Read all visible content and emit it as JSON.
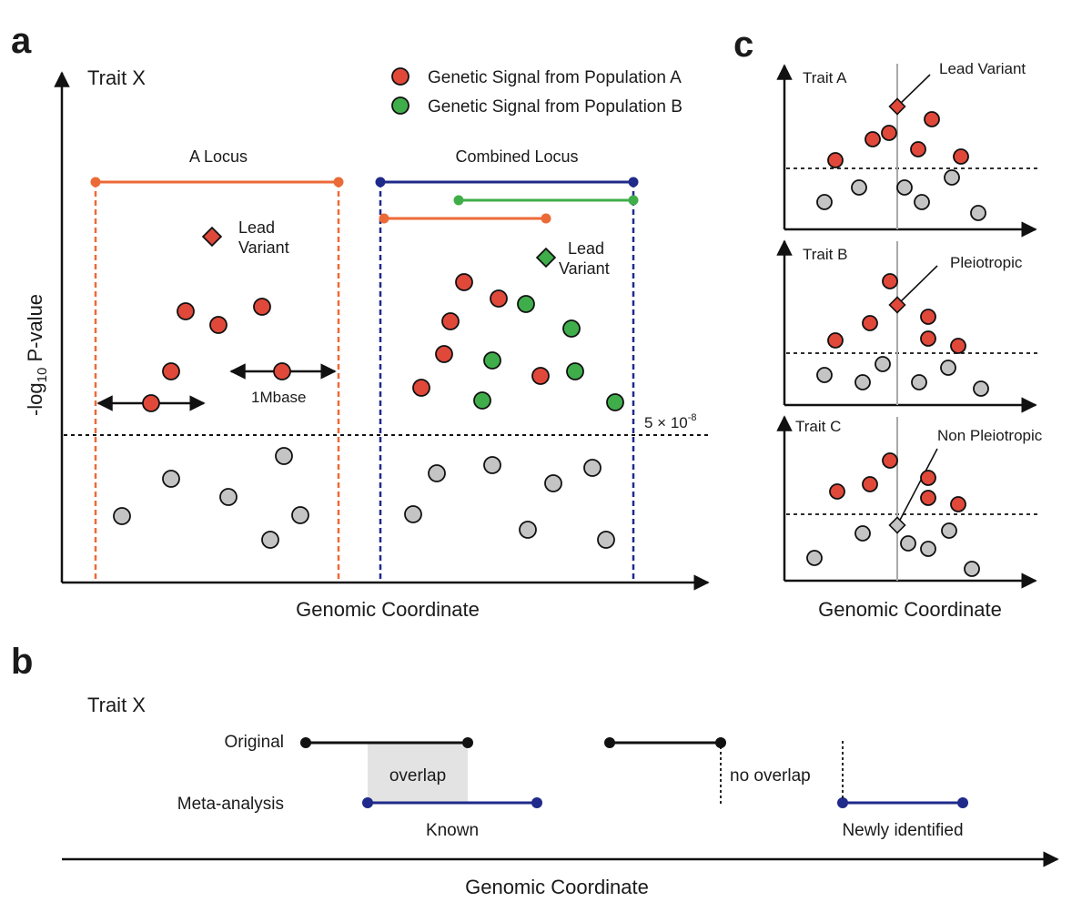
{
  "colors": {
    "pop_a": "#e0483a",
    "pop_b": "#3fae4a",
    "null": "#c4c4c4",
    "locus_a": "#ec6a37",
    "combined": "#1f2a8a",
    "meta": "#1f2a8a",
    "known_line": "#111111",
    "overlap_fill": "#e3e3e3",
    "pleio_line": "#a9a9a9"
  },
  "panel_a": {
    "letter": "a",
    "trait_title": "Trait X",
    "y_label": "-log",
    "y_label_sub": "10",
    "y_label_tail": " P-value",
    "x_label": "Genomic Coordinate",
    "legend": [
      {
        "label": "Genetic Signal from Population A",
        "color": "#e0483a"
      },
      {
        "label": "Genetic Signal from Population B",
        "color": "#3fae4a"
      }
    ],
    "a_locus_label": "A Locus",
    "combined_locus_label": "Combined Locus",
    "lead_variant_1": [
      "Lead",
      "Variant"
    ],
    "lead_variant_2": [
      "Lead",
      "Variant"
    ],
    "window_label": "1Mbase",
    "threshold_base": "5 × 10",
    "threshold_exp": "-8"
  },
  "panel_b": {
    "letter": "b",
    "trait_title": "Trait X",
    "row_original": "Original",
    "row_meta": "Meta-analysis",
    "overlap_label": "overlap",
    "no_overlap_label": "no overlap",
    "known_label": "Known",
    "new_label": "Newly identified",
    "x_label": "Genomic Coordinate"
  },
  "panel_c": {
    "letter": "c",
    "subpanels": [
      {
        "trait": "Trait A",
        "callout": "Lead Variant"
      },
      {
        "trait": "Trait B",
        "callout": "Pleiotropic"
      },
      {
        "trait": "Trait C",
        "callout": "Non Pleiotropic"
      }
    ],
    "x_label": "Genomic Coordinate"
  }
}
